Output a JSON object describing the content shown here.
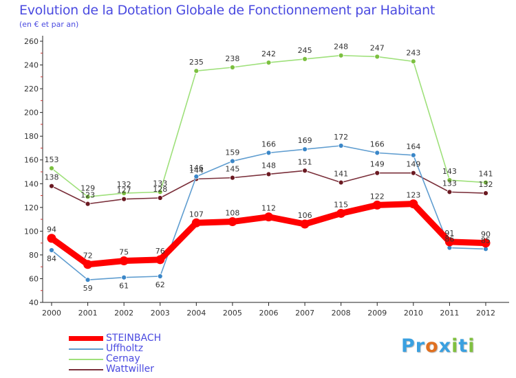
{
  "title": "Evolution de la Dotation Globale de Fonctionnement par Habitant",
  "subtitle": "(en € et par an)",
  "logo": {
    "text": "Proxiti",
    "letters": [
      "P",
      "r",
      "o",
      "x",
      "i",
      "t",
      "i"
    ],
    "colors": [
      "#3aa0e0",
      "#3aa0e0",
      "#e07020",
      "#3aa0e0",
      "#80c040",
      "#3aa0e0",
      "#80c040"
    ]
  },
  "chart_data": {
    "type": "line",
    "title": "Evolution de la Dotation Globale de Fonctionnement par Habitant",
    "ylabel": "(en € et par an)",
    "xlabel": "",
    "categories": [
      "2000",
      "2001",
      "2002",
      "2003",
      "2004",
      "2005",
      "2006",
      "2007",
      "2008",
      "2009",
      "2010",
      "2011",
      "2012"
    ],
    "ylim": [
      40,
      260
    ],
    "yticks": [
      40,
      60,
      80,
      100,
      120,
      140,
      160,
      180,
      200,
      220,
      240,
      260
    ],
    "grid": false,
    "legend": "bottom-left",
    "series": [
      {
        "name": "STEINBACH",
        "color": "#ff0000",
        "marker": "#ff0000",
        "values": [
          94,
          72,
          75,
          76,
          107,
          108,
          112,
          106,
          115,
          122,
          123,
          91,
          90
        ]
      },
      {
        "name": "Uffholtz",
        "color": "#5f9dd0",
        "marker": "#3b87c8",
        "values": [
          84,
          59,
          61,
          62,
          146,
          159,
          166,
          169,
          172,
          166,
          164,
          86,
          85
        ]
      },
      {
        "name": "Cernay",
        "color": "#9ee07a",
        "marker": "#7cc040",
        "values": [
          153,
          129,
          132,
          133,
          235,
          238,
          242,
          245,
          248,
          247,
          243,
          143,
          141
        ]
      },
      {
        "name": "Wattwiller",
        "color": "#7a2f3a",
        "marker": "#6b1a22",
        "values": [
          138,
          123,
          127,
          128,
          144,
          145,
          148,
          151,
          141,
          149,
          149,
          133,
          132
        ]
      }
    ]
  }
}
